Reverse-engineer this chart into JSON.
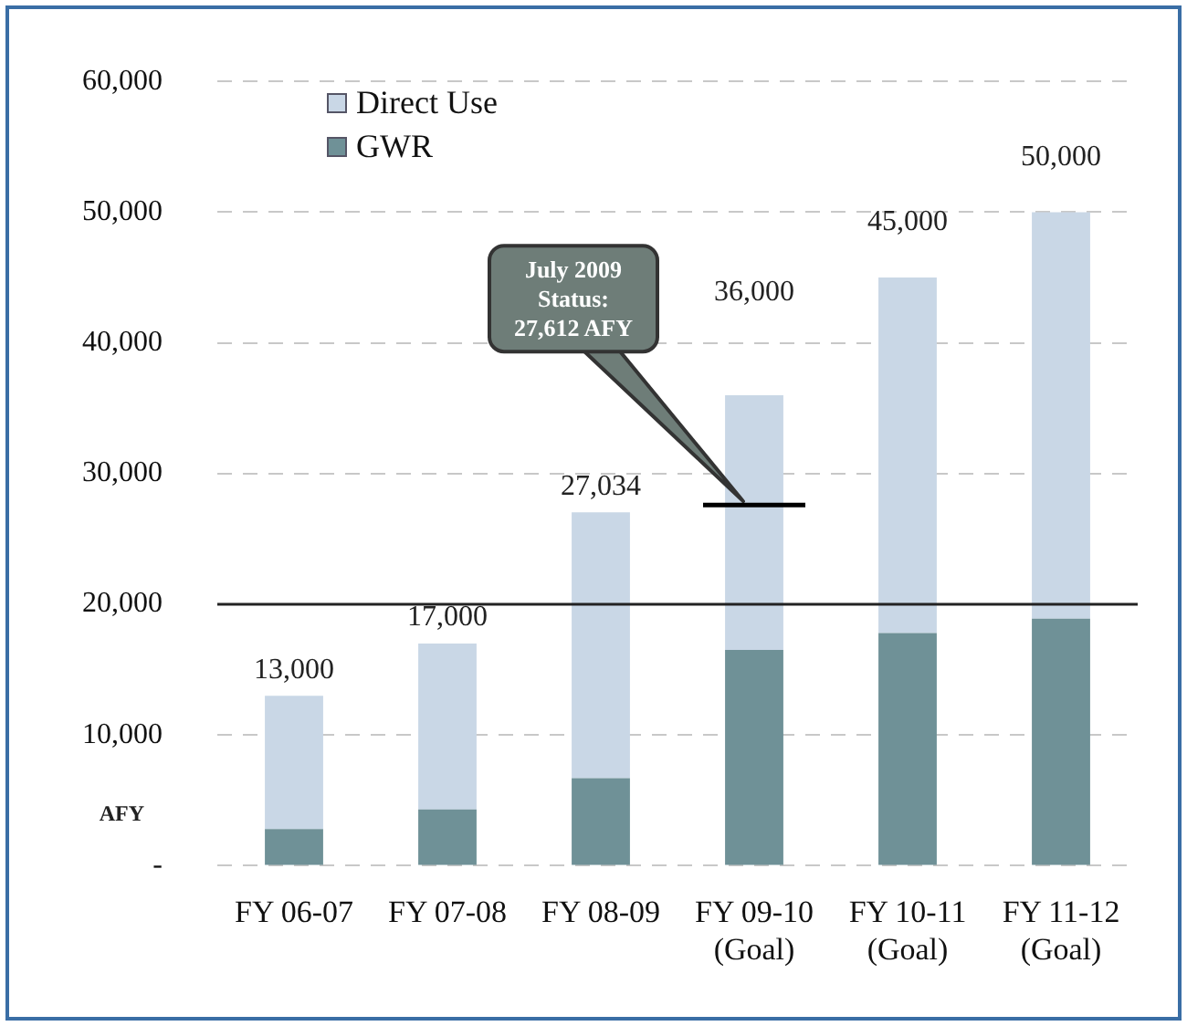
{
  "chart_data": {
    "type": "bar",
    "stacked": true,
    "categories": [
      "FY 06-07",
      "FY 07-08",
      "FY 08-09",
      "FY 09-10\n(Goal)",
      "FY 10-11\n(Goal)",
      "FY 11-12\n(Goal)"
    ],
    "series": [
      {
        "name": "GWR",
        "color": "#6f9197",
        "values": [
          2800,
          4300,
          6700,
          16500,
          17800,
          18900
        ]
      },
      {
        "name": "Direct Use",
        "color": "#c9d7e6",
        "values": [
          10200,
          12700,
          20334,
          19500,
          27200,
          31100
        ]
      }
    ],
    "totals": [
      "13,000",
      "17,000",
      "27,034",
      "36,000",
      "45,000",
      "50,000"
    ],
    "ylabel": "AFY",
    "ylim": [
      0,
      60000
    ],
    "yticks": [
      {
        "value": 0,
        "label": "-"
      },
      {
        "value": 10000,
        "label": "10,000"
      },
      {
        "value": 20000,
        "label": "20,000"
      },
      {
        "value": 30000,
        "label": "30,000"
      },
      {
        "value": 40000,
        "label": "40,000"
      },
      {
        "value": 50000,
        "label": "50,000"
      },
      {
        "value": 60000,
        "label": "60,000"
      }
    ],
    "grid": "y",
    "legend": "top left",
    "ref_lines": [
      {
        "axis": "y",
        "value": 20000,
        "color": "#222222",
        "line_style": "solid"
      }
    ],
    "annotations": [
      "July 2009\nStatus:\n27,612 AFY"
    ]
  }
}
